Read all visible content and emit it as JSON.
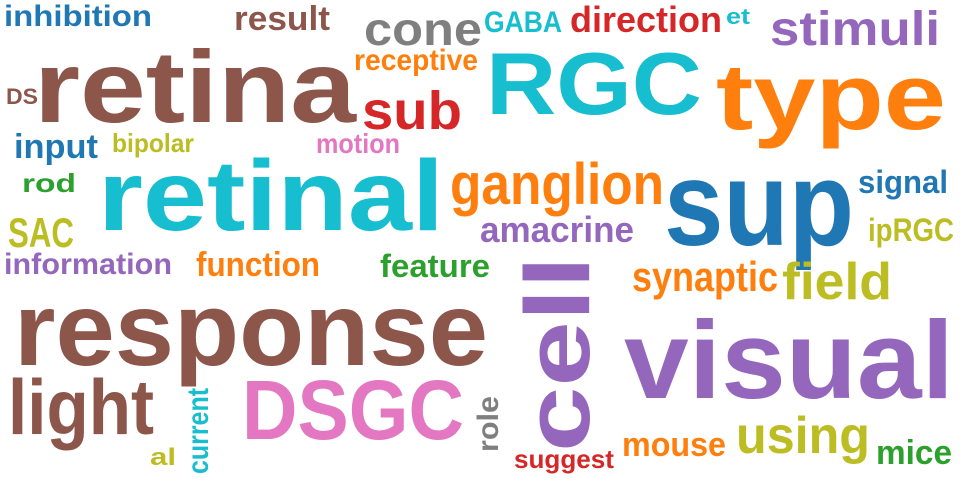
{
  "colors": {
    "brown": "#8c564b",
    "cyan": "#17becf",
    "orange": "#ff7f0e",
    "purple": "#9467bd",
    "blue": "#1f77b4",
    "red": "#d62728",
    "green": "#2ca02c",
    "olive": "#bcbd22",
    "pink": "#e377c2",
    "gray": "#7f7f7f"
  },
  "words": [
    {
      "key": "inhibition",
      "text": "inhibition",
      "color": "#1f77b4"
    },
    {
      "key": "result",
      "text": "result",
      "color": "#8c564b"
    },
    {
      "key": "cone",
      "text": "cone",
      "color": "#7f7f7f"
    },
    {
      "key": "gaba",
      "text": "GABA",
      "color": "#17becf"
    },
    {
      "key": "direction",
      "text": "direction",
      "color": "#d62728"
    },
    {
      "key": "et",
      "text": "et",
      "color": "#17becf"
    },
    {
      "key": "stimuli",
      "text": "stimuli",
      "color": "#9467bd"
    },
    {
      "key": "retina",
      "text": "retina",
      "color": "#8c564b"
    },
    {
      "key": "receptive",
      "text": "receptive",
      "color": "#ff7f0e"
    },
    {
      "key": "rgc",
      "text": "RGC",
      "color": "#17becf"
    },
    {
      "key": "type",
      "text": "type",
      "color": "#ff7f0e"
    },
    {
      "key": "ds",
      "text": "DS",
      "color": "#8c564b"
    },
    {
      "key": "sub",
      "text": "sub",
      "color": "#d62728"
    },
    {
      "key": "input",
      "text": "input",
      "color": "#1f77b4"
    },
    {
      "key": "bipolar",
      "text": "bipolar",
      "color": "#bcbd22"
    },
    {
      "key": "motion",
      "text": "motion",
      "color": "#e377c2"
    },
    {
      "key": "rod",
      "text": "rod",
      "color": "#2ca02c"
    },
    {
      "key": "retinal",
      "text": "retinal",
      "color": "#17becf"
    },
    {
      "key": "ganglion",
      "text": "ganglion",
      "color": "#ff7f0e"
    },
    {
      "key": "sup",
      "text": "sup",
      "color": "#1f77b4"
    },
    {
      "key": "signal",
      "text": "signal",
      "color": "#1f77b4"
    },
    {
      "key": "sac",
      "text": "SAC",
      "color": "#bcbd22"
    },
    {
      "key": "amacrine",
      "text": "amacrine",
      "color": "#9467bd"
    },
    {
      "key": "iprgc",
      "text": "ipRGC",
      "color": "#bcbd22"
    },
    {
      "key": "information",
      "text": "information",
      "color": "#9467bd"
    },
    {
      "key": "function",
      "text": "function",
      "color": "#ff7f0e"
    },
    {
      "key": "feature",
      "text": "feature",
      "color": "#2ca02c"
    },
    {
      "key": "synaptic",
      "text": "synaptic",
      "color": "#ff7f0e"
    },
    {
      "key": "field",
      "text": "field",
      "color": "#bcbd22"
    },
    {
      "key": "response",
      "text": "response",
      "color": "#8c564b"
    },
    {
      "key": "cell",
      "text": "cell",
      "color": "#9467bd"
    },
    {
      "key": "visual",
      "text": "visual",
      "color": "#9467bd"
    },
    {
      "key": "light",
      "text": "light",
      "color": "#8c564b"
    },
    {
      "key": "dsgc",
      "text": "DSGC",
      "color": "#e377c2"
    },
    {
      "key": "current",
      "text": "current",
      "color": "#17becf"
    },
    {
      "key": "al",
      "text": "al",
      "color": "#bcbd22"
    },
    {
      "key": "role",
      "text": "role",
      "color": "#7f7f7f"
    },
    {
      "key": "mouse",
      "text": "mouse",
      "color": "#ff7f0e"
    },
    {
      "key": "using",
      "text": "using",
      "color": "#bcbd22"
    },
    {
      "key": "suggest",
      "text": "suggest",
      "color": "#d62728"
    },
    {
      "key": "mice",
      "text": "mice",
      "color": "#2ca02c"
    }
  ]
}
